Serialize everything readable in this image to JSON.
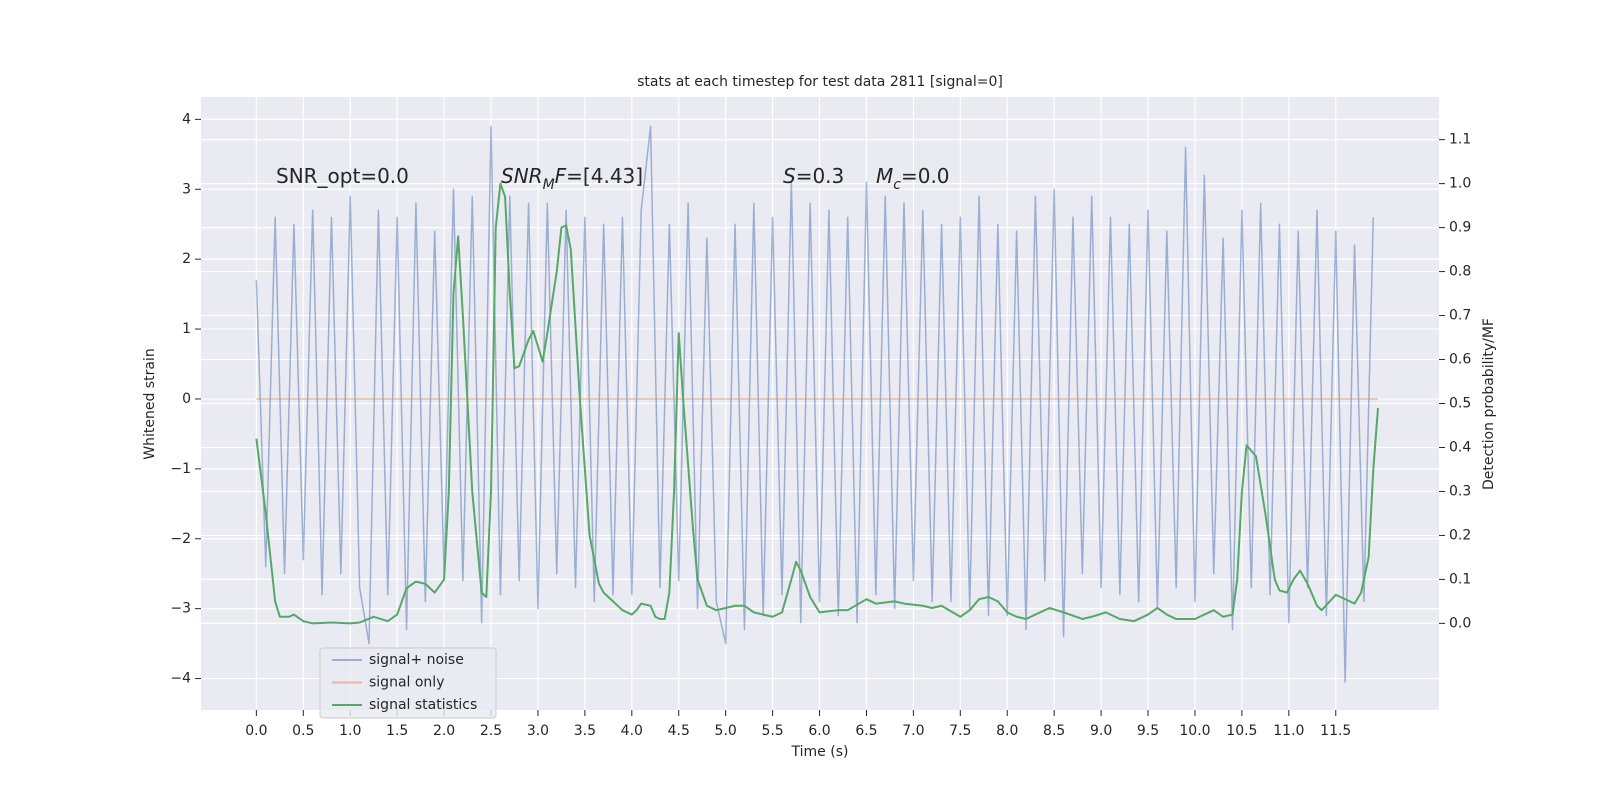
{
  "chart_data": {
    "type": "line",
    "title": "stats at each timestep for test data 2811 [signal=0]",
    "x_label": "Time (s)",
    "y_label": "Whitened strain",
    "y2_label": "Detection probability/MF",
    "xlim": [
      -0.59,
      12.6
    ],
    "ylim": [
      -4.45,
      4.32
    ],
    "y2lim": [
      -0.197,
      1.197
    ],
    "xticks": [
      {
        "value": 0,
        "label": "0.0"
      },
      0.5,
      {
        "value": 1,
        "label": "1.0"
      },
      1.5,
      {
        "value": 2,
        "label": "2.0"
      },
      2.5,
      {
        "value": 3,
        "label": "3.0"
      },
      3.5,
      {
        "value": 4,
        "label": "4.0"
      },
      4.5,
      {
        "value": 5,
        "label": "5.0"
      },
      5.5,
      {
        "value": 6,
        "label": "6.0"
      },
      6.5,
      {
        "value": 7,
        "label": "7.0"
      },
      7.5,
      {
        "value": 8,
        "label": "8.0"
      },
      8.5,
      {
        "value": 9,
        "label": "9.0"
      },
      9.5,
      {
        "value": 10,
        "label": "10.0"
      },
      10.5,
      {
        "value": 11,
        "label": "11.0"
      },
      11.5
    ],
    "yticks": [
      {
        "value": -4,
        "label": "−4"
      },
      {
        "value": -3,
        "label": "−3"
      },
      {
        "value": -2,
        "label": "−2"
      },
      {
        "value": -1,
        "label": "−1"
      },
      0,
      1,
      2,
      3,
      4
    ],
    "y2ticks": [
      {
        "value": 0,
        "label": "0.0"
      },
      0.1,
      0.2,
      0.3,
      0.4,
      0.5,
      0.6,
      0.7,
      0.8,
      0.9,
      {
        "value": 1,
        "label": "1.0"
      },
      1.1
    ],
    "grid": true,
    "legend_loc": "lower left",
    "annotations": [
      {
        "parts": [
          {
            "text": "SNR_opt=0.0",
            "style": "normal"
          }
        ]
      },
      {
        "parts": [
          {
            "text": "SNR",
            "style": "italic"
          },
          {
            "text": "M",
            "style": "sub"
          },
          {
            "text": "F",
            "style": "italic"
          },
          {
            "text": "=[4.43]",
            "style": "normal"
          }
        ]
      },
      {
        "parts": [
          {
            "text": "S",
            "style": "italic"
          },
          {
            "text": "=0.3",
            "style": "normal"
          }
        ]
      },
      {
        "parts": [
          {
            "text": "M",
            "style": "italic"
          },
          {
            "text": "c",
            "style": "sub"
          },
          {
            "text": "=0.0",
            "style": "normal"
          }
        ]
      }
    ],
    "series": [
      {
        "name": "signal+ noise",
        "color": "#4c72b0",
        "opacity": 0.5,
        "axis": "y",
        "x": [
          0.0,
          0.1,
          0.2,
          0.3,
          0.4,
          0.5,
          0.6,
          0.7,
          0.8,
          0.9,
          1.0,
          1.1,
          1.2,
          1.3,
          1.4,
          1.5,
          1.6,
          1.7,
          1.8,
          1.9,
          2.0,
          2.1,
          2.2,
          2.3,
          2.4,
          2.5,
          2.6,
          2.7,
          2.8,
          2.9,
          3.0,
          3.1,
          3.2,
          3.3,
          3.4,
          3.5,
          3.6,
          3.7,
          3.8,
          3.9,
          4.0,
          4.1,
          4.2,
          4.3,
          4.4,
          4.5,
          4.6,
          4.7,
          4.8,
          4.9,
          5.0,
          5.1,
          5.2,
          5.3,
          5.4,
          5.5,
          5.6,
          5.7,
          5.8,
          5.9,
          6.0,
          6.1,
          6.2,
          6.3,
          6.4,
          6.5,
          6.6,
          6.7,
          6.8,
          6.9,
          7.0,
          7.1,
          7.2,
          7.3,
          7.4,
          7.5,
          7.6,
          7.7,
          7.8,
          7.9,
          8.0,
          8.1,
          8.2,
          8.3,
          8.4,
          8.5,
          8.6,
          8.7,
          8.8,
          8.9,
          9.0,
          9.1,
          9.2,
          9.3,
          9.4,
          9.5,
          9.6,
          9.7,
          9.8,
          9.9,
          10.0,
          10.1,
          10.2,
          10.3,
          10.4,
          10.5,
          10.6,
          10.7,
          10.8,
          10.9,
          11.0,
          11.1,
          11.2,
          11.3,
          11.4,
          11.5,
          11.6,
          11.7,
          11.8,
          11.9
        ],
        "values": [
          1.7,
          -2.4,
          2.6,
          -2.5,
          2.5,
          -2.3,
          2.7,
          -2.8,
          2.6,
          -2.5,
          2.9,
          -2.7,
          -3.5,
          2.7,
          -2.8,
          2.6,
          -3.3,
          2.8,
          -2.9,
          2.4,
          -2.5,
          3.0,
          -2.6,
          2.9,
          -3.2,
          3.9,
          -2.8,
          2.9,
          -2.6,
          2.8,
          -3.0,
          2.8,
          -2.5,
          2.7,
          -2.7,
          2.6,
          -2.9,
          2.5,
          -2.8,
          2.6,
          -2.8,
          2.7,
          3.9,
          -2.7,
          2.5,
          -2.6,
          2.8,
          -3.0,
          2.3,
          -2.9,
          -3.5,
          2.5,
          -3.3,
          2.8,
          -3.1,
          2.6,
          -2.8,
          3.1,
          -3.2,
          2.8,
          -2.9,
          2.7,
          -3.1,
          2.6,
          -3.2,
          3.1,
          -2.8,
          2.9,
          -3.0,
          2.8,
          -2.6,
          2.7,
          -2.9,
          2.5,
          -2.9,
          2.6,
          -3.0,
          2.9,
          -3.1,
          2.5,
          -3.1,
          2.4,
          -3.3,
          2.9,
          -2.6,
          3.0,
          -3.4,
          2.6,
          -2.5,
          2.9,
          -2.7,
          2.6,
          -2.8,
          2.5,
          -2.9,
          2.7,
          -3.0,
          2.4,
          -2.7,
          3.6,
          -2.9,
          3.2,
          -2.5,
          2.3,
          -3.3,
          2.7,
          -2.7,
          2.8,
          -2.8,
          2.5,
          -3.2,
          2.4,
          -2.7,
          2.7,
          -3.1,
          2.4,
          -4.05,
          2.2,
          -2.9,
          2.6
        ]
      },
      {
        "name": "signal only",
        "color": "#dd8452",
        "opacity": 0.5,
        "axis": "y",
        "x": [
          0.0,
          11.95
        ],
        "values": [
          0,
          0
        ]
      },
      {
        "name": "signal statistics",
        "color": "#55a868",
        "opacity": 1,
        "axis": "y2",
        "x": [
          0.0,
          0.1,
          0.2,
          0.25,
          0.35,
          0.4,
          0.5,
          0.6,
          0.8,
          1.0,
          1.1,
          1.25,
          1.4,
          1.5,
          1.6,
          1.7,
          1.8,
          1.9,
          2.0,
          2.05,
          2.1,
          2.15,
          2.2,
          2.3,
          2.4,
          2.45,
          2.5,
          2.55,
          2.6,
          2.65,
          2.7,
          2.75,
          2.8,
          2.9,
          2.95,
          3.0,
          3.05,
          3.1,
          3.2,
          3.25,
          3.3,
          3.35,
          3.45,
          3.55,
          3.65,
          3.7,
          3.8,
          3.9,
          4.0,
          4.05,
          4.1,
          4.2,
          4.25,
          4.3,
          4.35,
          4.4,
          4.45,
          4.5,
          4.55,
          4.65,
          4.7,
          4.8,
          4.9,
          5.0,
          5.1,
          5.2,
          5.3,
          5.5,
          5.6,
          5.7,
          5.75,
          5.8,
          5.9,
          6.0,
          6.2,
          6.3,
          6.5,
          6.6,
          6.8,
          6.9,
          7.1,
          7.2,
          7.3,
          7.5,
          7.6,
          7.7,
          7.8,
          7.9,
          8.0,
          8.1,
          8.2,
          8.3,
          8.45,
          8.6,
          8.8,
          8.9,
          9.05,
          9.2,
          9.35,
          9.5,
          9.6,
          9.7,
          9.8,
          10.0,
          10.1,
          10.2,
          10.3,
          10.4,
          10.45,
          10.5,
          10.55,
          10.65,
          10.75,
          10.85,
          10.9,
          10.98,
          11.05,
          11.12,
          11.2,
          11.3,
          11.35,
          11.5,
          11.55,
          11.7,
          11.77,
          11.85,
          11.9,
          11.95
        ],
        "values": [
          0.42,
          0.25,
          0.05,
          0.015,
          0.015,
          0.02,
          0.005,
          0.0,
          0.002,
          0.0,
          0.002,
          0.015,
          0.005,
          0.02,
          0.08,
          0.095,
          0.09,
          0.07,
          0.1,
          0.3,
          0.75,
          0.88,
          0.7,
          0.3,
          0.07,
          0.06,
          0.3,
          0.9,
          1.0,
          0.97,
          0.75,
          0.58,
          0.585,
          0.645,
          0.665,
          0.63,
          0.595,
          0.66,
          0.8,
          0.9,
          0.905,
          0.85,
          0.5,
          0.2,
          0.09,
          0.07,
          0.05,
          0.03,
          0.02,
          0.03,
          0.045,
          0.04,
          0.015,
          0.01,
          0.01,
          0.07,
          0.3,
          0.66,
          0.5,
          0.22,
          0.1,
          0.04,
          0.03,
          0.035,
          0.04,
          0.04,
          0.025,
          0.015,
          0.025,
          0.1,
          0.14,
          0.12,
          0.06,
          0.025,
          0.03,
          0.03,
          0.055,
          0.045,
          0.05,
          0.045,
          0.04,
          0.035,
          0.04,
          0.015,
          0.03,
          0.055,
          0.06,
          0.05,
          0.025,
          0.015,
          0.01,
          0.02,
          0.035,
          0.025,
          0.01,
          0.015,
          0.025,
          0.01,
          0.005,
          0.02,
          0.035,
          0.02,
          0.01,
          0.01,
          0.02,
          0.03,
          0.015,
          0.02,
          0.1,
          0.3,
          0.405,
          0.38,
          0.25,
          0.1,
          0.075,
          0.07,
          0.1,
          0.12,
          0.09,
          0.04,
          0.03,
          0.065,
          0.06,
          0.045,
          0.07,
          0.15,
          0.35,
          0.49
        ]
      }
    ]
  }
}
